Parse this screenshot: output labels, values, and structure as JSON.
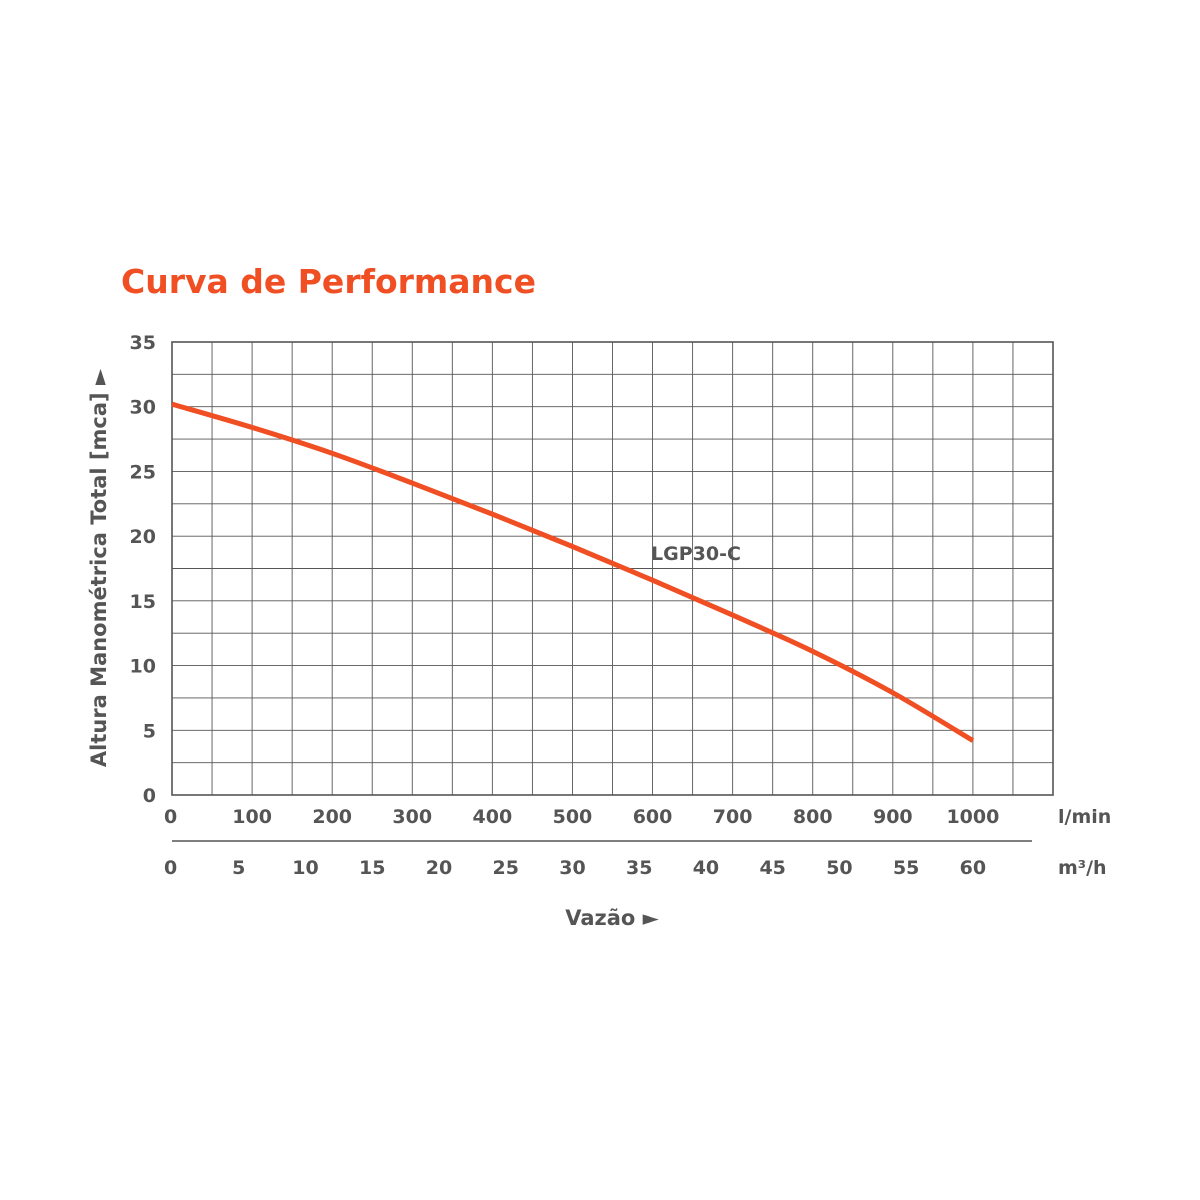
{
  "title": "Curva de Performance",
  "colors": {
    "curve": "#f04e23",
    "title": "#f04e23",
    "text": "#555555",
    "grid": "#555555"
  },
  "chart_data": {
    "type": "line",
    "title": "Curva de Performance",
    "ylabel": "Altura Manométrica Total [mca] ►",
    "xlabel": "Vazão ►",
    "x_unit_primary": "l/min",
    "x_unit_secondary": "m³/h",
    "xlim": [
      0,
      1100
    ],
    "ylim": [
      0,
      35
    ],
    "x_ticks_primary": [
      "0",
      "100",
      "200",
      "300",
      "400",
      "500",
      "600",
      "700",
      "800",
      "900",
      "1000"
    ],
    "x_ticks_secondary": [
      "0",
      "5",
      "10",
      "15",
      "20",
      "25",
      "30",
      "35",
      "40",
      "45",
      "50",
      "55",
      "60"
    ],
    "y_ticks": [
      "0",
      "5",
      "10",
      "15",
      "20",
      "25",
      "30",
      "35"
    ],
    "grid": true,
    "series": [
      {
        "name": "LGP30-C",
        "x": [
          0,
          100,
          200,
          300,
          400,
          500,
          600,
          700,
          800,
          900,
          1000
        ],
        "y": [
          30.2,
          28.4,
          26.4,
          24.1,
          21.7,
          19.2,
          16.6,
          13.9,
          11.1,
          7.9,
          4.2
        ]
      }
    ]
  }
}
